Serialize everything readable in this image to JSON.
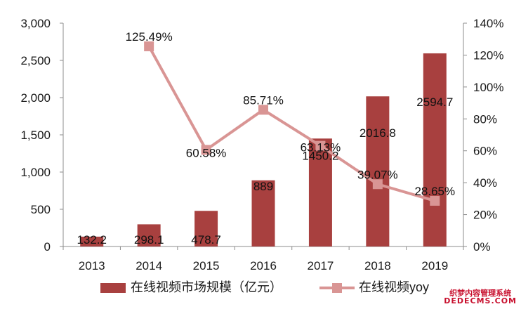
{
  "chart_data": {
    "type": "bar",
    "categories": [
      "2013",
      "2014",
      "2015",
      "2016",
      "2017",
      "2018",
      "2019"
    ],
    "series": [
      {
        "name": "在线视频市场规模（亿元）",
        "type": "bar",
        "axis": "left",
        "color": "#a8403f",
        "values": [
          132.2,
          298.1,
          478.7,
          889,
          1450.2,
          2016.8,
          2594.7
        ],
        "labels": [
          "132.2",
          "298.1",
          "478.7",
          "889",
          "1450.2",
          "2016.8",
          "2594.7"
        ]
      },
      {
        "name": "在线视频yoy",
        "type": "line",
        "axis": "right",
        "color": "#d99594",
        "values": [
          null,
          125.49,
          60.58,
          85.71,
          63.13,
          39.07,
          28.65
        ],
        "labels": [
          "",
          "125.49%",
          "60.58%",
          "85.71%",
          "63.13%",
          "39.07%",
          "28.65%"
        ]
      }
    ],
    "y_left": {
      "min": 0,
      "max": 3000,
      "ticks": [
        "0",
        "500",
        "1,000",
        "1,500",
        "2,000",
        "2,500",
        "3,000"
      ]
    },
    "y_right": {
      "min": 0,
      "max": 140,
      "ticks": [
        "0%",
        "20%",
        "40%",
        "60%",
        "80%",
        "100%",
        "120%",
        "140%"
      ]
    },
    "grid": false,
    "legend": "bottom"
  },
  "watermark": {
    "cn": "织梦内容管理系统",
    "en": "DEDECMS.COM"
  }
}
